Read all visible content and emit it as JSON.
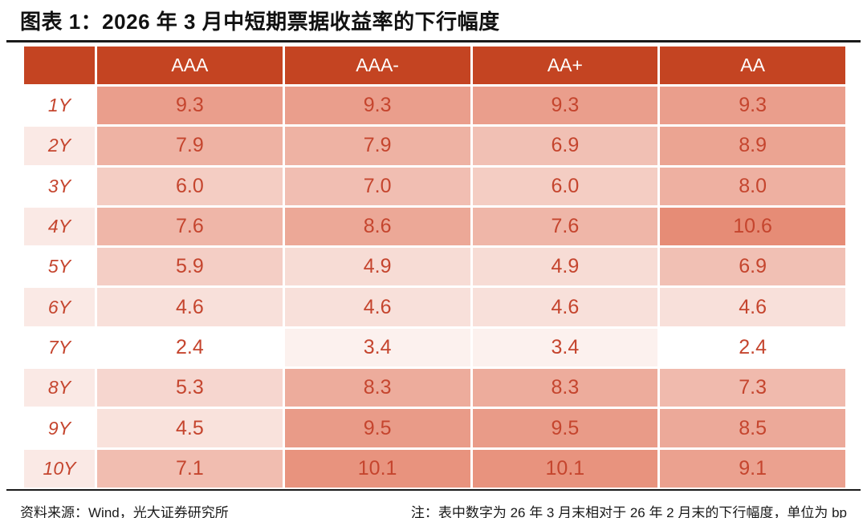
{
  "title": "图表 1：2026 年 3 月中短期票据收益率的下行幅度",
  "footer": {
    "source": "资料来源：Wind，光大证券研究所",
    "note": "注：表中数字为 26 年 3 月末相对于 26 年 2 月末的下行幅度，单位为 bp"
  },
  "colors": {
    "header_bg": "#C44422",
    "number_text": "#C5452E",
    "row_label_text": "#C5452E",
    "row_label_alt_bg": "#FAE9E5",
    "row_label_base_bg": "#FFFFFF",
    "scale_min_color": "#FFFFFF",
    "scale_max_color": "#E68C76",
    "rule_color": "#1A1A1A"
  },
  "chart_data": {
    "type": "heatmap",
    "title": "图表 1：2026 年 3 月中短期票据收益率的下行幅度",
    "corner_label": "",
    "categories": [
      "AAA",
      "AAA-",
      "AA+",
      "AA"
    ],
    "row_labels": [
      "1Y",
      "2Y",
      "3Y",
      "4Y",
      "5Y",
      "6Y",
      "7Y",
      "8Y",
      "9Y",
      "10Y"
    ],
    "values": [
      [
        9.3,
        9.3,
        9.3,
        9.3
      ],
      [
        7.9,
        7.9,
        6.9,
        8.9
      ],
      [
        6.0,
        7.0,
        6.0,
        8.0
      ],
      [
        7.6,
        8.6,
        7.6,
        10.6
      ],
      [
        5.9,
        4.9,
        4.9,
        6.9
      ],
      [
        4.6,
        4.6,
        4.6,
        4.6
      ],
      [
        2.4,
        3.4,
        3.4,
        2.4
      ],
      [
        5.3,
        8.3,
        8.3,
        7.3
      ],
      [
        4.5,
        9.5,
        9.5,
        8.5
      ],
      [
        7.1,
        10.1,
        10.1,
        9.1
      ]
    ],
    "unit": "bp",
    "value_range": [
      2.4,
      10.6
    ],
    "decimals": 1,
    "color_scale": "white-to-salmon, darker = larger decline"
  }
}
